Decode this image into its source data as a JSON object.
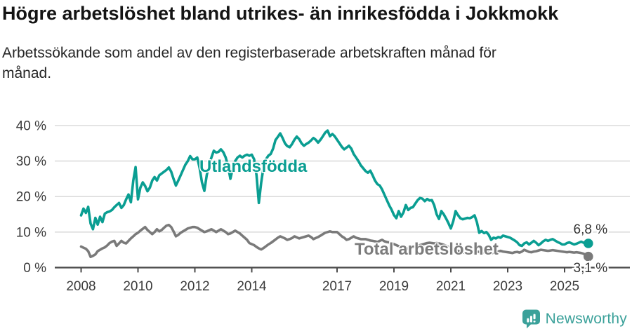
{
  "header": {
    "title": "Högre arbetslöshet bland utrikes- än inrikesfödda i Jokkmokk",
    "subtitle": "Arbetssökande som andel av den registerbaserade arbetskraften månad för\nmånad."
  },
  "footer": {
    "brand": "Newsworthy",
    "brand_color": "#3ba19a"
  },
  "chart_data": {
    "type": "line",
    "title": "Högre arbetslöshet bland utrikes- än inrikesfödda i Jokkmokk",
    "x_start": "2008-01",
    "x_end": "2025-11",
    "points_per_year": 12,
    "x_ticks": [
      2008,
      2010,
      2012,
      2014,
      2017,
      2019,
      2021,
      2023,
      2025
    ],
    "y_ticks": [
      0,
      10,
      20,
      30,
      40
    ],
    "y_tick_suffix": " %",
    "ylim": [
      0,
      40
    ],
    "grid": "horizontal",
    "legend_position": "inline-labels",
    "colors": {
      "grid": "#dcdcdc",
      "axis": "#4b4b4b",
      "tick_text": "#3a3a3a"
    },
    "series": [
      {
        "name": "Utlandsfödda",
        "color": "#0a9e92",
        "end_label": "6,8 %",
        "end_value": 6.8,
        "values": [
          14.7,
          16.6,
          15.4,
          17.1,
          12.4,
          10.8,
          14.0,
          12.1,
          14.3,
          12.8,
          15.2,
          15.6,
          15.8,
          16.2,
          17.0,
          17.6,
          18.2,
          16.8,
          17.6,
          19.2,
          20.6,
          18.4,
          24.5,
          28.3,
          19.2,
          22.5,
          24.0,
          23.0,
          21.5,
          22.5,
          24.5,
          25.5,
          24.5,
          26.0,
          26.5,
          27.0,
          27.5,
          28.2,
          27.0,
          25.0,
          23.1,
          24.5,
          26.0,
          27.5,
          29.0,
          30.0,
          31.4,
          30.5,
          30.5,
          31.0,
          28.0,
          24.0,
          21.6,
          26.0,
          29.0,
          31.0,
          32.9,
          32.4,
          32.6,
          33.3,
          32.5,
          31.0,
          28.5,
          25.0,
          28.0,
          30.0,
          31.0,
          31.5,
          31.0,
          31.5,
          31.8,
          31.5,
          31.8,
          30.5,
          26.0,
          18.2,
          24.0,
          28.5,
          30.5,
          31.5,
          32.0,
          33.5,
          35.9,
          36.8,
          37.8,
          36.5,
          35.0,
          34.2,
          33.9,
          34.8,
          36.0,
          36.9,
          36.2,
          35.0,
          34.3,
          34.8,
          35.2,
          35.8,
          36.5,
          36.0,
          35.2,
          36.0,
          37.0,
          38.0,
          38.6,
          37.0,
          37.6,
          37.0,
          36.0,
          35.0,
          34.0,
          33.3,
          33.8,
          34.3,
          33.5,
          32.0,
          31.0,
          30.0,
          28.8,
          28.0,
          27.2,
          26.7,
          27.3,
          26.0,
          24.5,
          23.5,
          23.1,
          22.0,
          20.5,
          19.0,
          17.5,
          16.3,
          14.8,
          13.9,
          15.9,
          14.3,
          15.5,
          17.6,
          16.2,
          16.8,
          17.0,
          18.0,
          19.0,
          19.6,
          19.4,
          18.7,
          19.3,
          18.9,
          19.0,
          17.5,
          15.0,
          13.7,
          15.9,
          15.0,
          13.8,
          12.5,
          11.0,
          13.0,
          15.9,
          14.8,
          13.9,
          13.6,
          13.8,
          14.0,
          13.9,
          14.2,
          14.7,
          12.8,
          9.8,
          10.3,
          9.7,
          10.0,
          9.2,
          7.8,
          8.4,
          8.2,
          8.6,
          8.4,
          9.0,
          8.8,
          8.6,
          8.4,
          8.0,
          7.6,
          7.1,
          6.3,
          6.1,
          6.8,
          7.1,
          6.5,
          7.0,
          7.5,
          7.0,
          6.3,
          6.8,
          7.4,
          7.8,
          7.5,
          7.8,
          8.0,
          7.6,
          7.2,
          6.9,
          6.5,
          6.5,
          6.9,
          7.1,
          6.8,
          6.5,
          6.7,
          7.0,
          7.3,
          7.0,
          6.6,
          6.8
        ]
      },
      {
        "name": "Total arbetslöshet",
        "color": "#7a7a7a",
        "end_label": "3,1 %",
        "end_value": 3.1,
        "values": [
          5.9,
          5.6,
          5.3,
          4.6,
          3.0,
          3.3,
          3.7,
          4.6,
          5.0,
          5.4,
          5.7,
          6.2,
          6.9,
          7.3,
          7.5,
          6.1,
          6.8,
          7.5,
          7.0,
          6.8,
          7.5,
          8.2,
          8.8,
          9.4,
          9.8,
          10.4,
          10.9,
          11.4,
          10.6,
          10.0,
          9.4,
          10.0,
          10.8,
          10.2,
          10.6,
          11.2,
          11.8,
          12.0,
          11.4,
          10.2,
          8.8,
          9.2,
          9.8,
          10.2,
          10.6,
          11.0,
          11.2,
          11.4,
          11.4,
          11.2,
          10.8,
          10.4,
          10.0,
          10.2,
          10.5,
          10.8,
          10.4,
          10.0,
          10.4,
          10.8,
          10.4,
          10.0,
          9.4,
          9.6,
          10.0,
          10.4,
          10.0,
          9.6,
          9.0,
          8.4,
          7.8,
          6.9,
          6.6,
          6.3,
          5.8,
          5.4,
          5.1,
          5.5,
          6.0,
          6.5,
          6.9,
          7.4,
          7.9,
          8.4,
          8.8,
          8.5,
          8.2,
          7.8,
          8.0,
          8.3,
          8.8,
          8.5,
          8.2,
          8.4,
          8.6,
          8.8,
          9.0,
          8.6,
          8.0,
          8.3,
          8.6,
          9.0,
          9.4,
          9.8,
          10.0,
          10.2,
          10.0,
          10.0,
          10.0,
          9.4,
          8.8,
          8.4,
          7.8,
          8.0,
          8.4,
          8.8,
          8.4,
          8.2,
          8.0,
          8.0,
          8.0,
          7.8,
          7.6,
          7.5,
          7.4,
          7.2,
          7.5,
          7.8,
          7.4,
          7.2,
          7.1,
          6.9,
          6.6,
          6.3,
          6.0,
          5.8,
          5.6,
          5.4,
          5.3,
          5.5,
          5.7,
          5.9,
          6.1,
          6.3,
          6.5,
          6.7,
          6.9,
          7.0,
          6.9,
          6.8,
          6.9,
          6.8,
          6.6,
          6.4,
          6.1,
          5.8,
          5.5,
          5.2,
          4.9,
          4.7,
          4.5,
          4.3,
          4.1,
          4.2,
          4.3,
          4.2,
          4.4,
          4.5,
          4.4,
          4.5,
          4.3,
          4.2,
          4.1,
          4.0,
          4.2,
          4.3,
          4.5,
          4.7,
          4.5,
          4.4,
          4.3,
          4.2,
          4.1,
          4.3,
          4.4,
          4.2,
          4.5,
          5.0,
          4.7,
          4.4,
          4.3,
          4.5,
          4.6,
          4.8,
          5.0,
          4.9,
          4.8,
          4.7,
          4.8,
          4.9,
          4.8,
          4.7,
          4.6,
          4.5,
          4.4,
          4.3,
          4.4,
          4.3,
          4.2,
          4.3,
          4.2,
          4.1,
          3.9,
          3.5,
          3.1
        ]
      }
    ]
  }
}
